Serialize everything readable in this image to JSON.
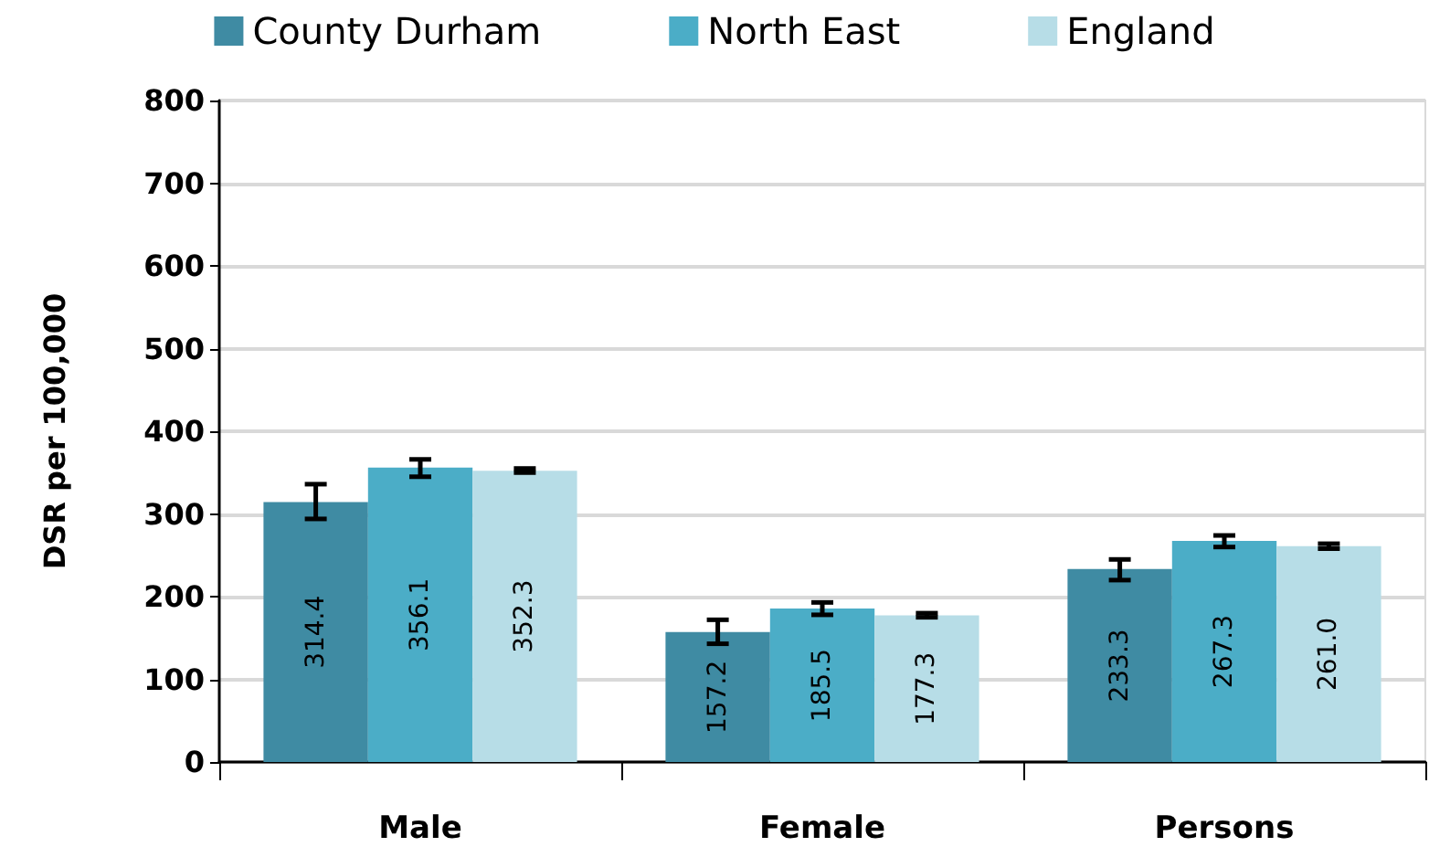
{
  "chart_data": {
    "type": "bar",
    "ylabel": "DSR per 100,000",
    "categories": [
      "Male",
      "Female",
      "Persons"
    ],
    "series": [
      {
        "name": "County Durham",
        "color": "#3f8ba3",
        "values": [
          314.4,
          157.2,
          233.3
        ],
        "errors": [
          [
            294,
            336
          ],
          [
            143,
            172
          ],
          [
            220,
            245
          ]
        ],
        "value_labels": [
          "314.4",
          "157.2",
          "233.3"
        ]
      },
      {
        "name": "North East",
        "color": "#4badc7",
        "values": [
          356.1,
          185.5,
          267.3
        ],
        "errors": [
          [
            345,
            366
          ],
          [
            178,
            193
          ],
          [
            260,
            274
          ]
        ],
        "value_labels": [
          "356.1",
          "185.5",
          "267.3"
        ]
      },
      {
        "name": "England",
        "color": "#b7dde7",
        "values": [
          352.3,
          177.3,
          261.0
        ],
        "errors": [
          [
            350,
            355
          ],
          [
            175,
            180
          ],
          [
            258,
            264
          ]
        ],
        "value_labels": [
          "352.3",
          "177.3",
          "261.0"
        ]
      }
    ],
    "ylim": [
      0,
      800
    ],
    "yticks": [
      0,
      100,
      200,
      300,
      400,
      500,
      600,
      700,
      800
    ],
    "grid": "y",
    "legend": "top"
  }
}
